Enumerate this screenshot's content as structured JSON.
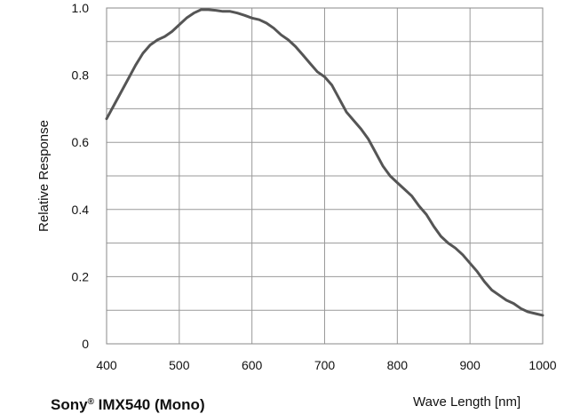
{
  "chart_data": {
    "type": "line",
    "title_main": "Sony",
    "title_sup": "®",
    "title_rest": " IMX540 (Mono)",
    "xlabel": "Wave Length [nm]",
    "ylabel": "Relative Response",
    "xlim": [
      400,
      1000
    ],
    "ylim": [
      0,
      1.0
    ],
    "xticks": [
      400,
      500,
      600,
      700,
      800,
      900,
      1000
    ],
    "yticks": [
      0,
      0.2,
      0.4,
      0.6,
      0.8,
      1.0
    ],
    "ytick_labels": [
      "0",
      "0.2",
      "0.4",
      "0.6",
      "0.8",
      "1.0"
    ],
    "y_minor_step": 0.1,
    "grid": true,
    "line_color": "#555555",
    "series": [
      {
        "x": [
          400,
          410,
          420,
          430,
          440,
          450,
          460,
          470,
          480,
          490,
          500,
          510,
          520,
          530,
          540,
          550,
          560,
          570,
          580,
          590,
          600,
          610,
          620,
          630,
          640,
          650,
          660,
          670,
          680,
          690,
          700,
          710,
          720,
          730,
          740,
          750,
          760,
          770,
          780,
          790,
          800,
          810,
          820,
          830,
          840,
          850,
          860,
          870,
          880,
          890,
          900,
          910,
          920,
          930,
          940,
          950,
          960,
          970,
          980,
          990,
          1000
        ],
        "y": [
          0.67,
          0.71,
          0.75,
          0.79,
          0.83,
          0.865,
          0.89,
          0.905,
          0.915,
          0.93,
          0.95,
          0.97,
          0.985,
          0.995,
          0.995,
          0.993,
          0.99,
          0.99,
          0.985,
          0.978,
          0.97,
          0.965,
          0.955,
          0.94,
          0.92,
          0.905,
          0.885,
          0.86,
          0.835,
          0.81,
          0.795,
          0.77,
          0.73,
          0.69,
          0.665,
          0.64,
          0.61,
          0.57,
          0.53,
          0.5,
          0.48,
          0.46,
          0.44,
          0.41,
          0.385,
          0.35,
          0.32,
          0.3,
          0.285,
          0.265,
          0.24,
          0.215,
          0.185,
          0.16,
          0.145,
          0.13,
          0.12,
          0.105,
          0.095,
          0.09,
          0.085
        ]
      }
    ]
  }
}
